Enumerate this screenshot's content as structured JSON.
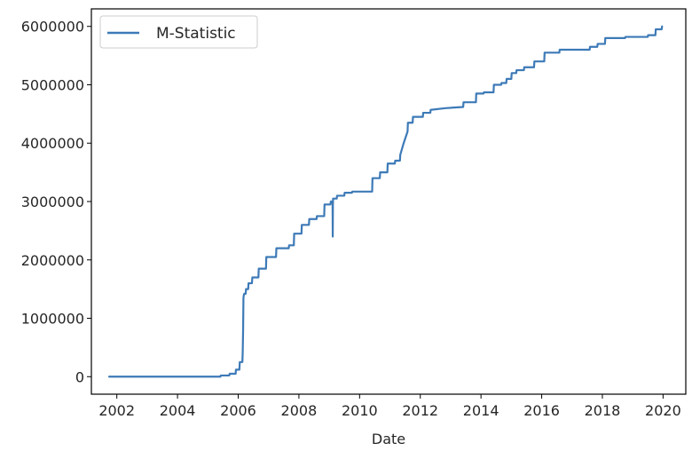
{
  "chart_data": {
    "type": "line",
    "title": "",
    "xlabel": "Date",
    "ylabel": "",
    "xlim": [
      "2001-03-01",
      "2020-10-01"
    ],
    "ylim": [
      -300000,
      6300000
    ],
    "x_ticks": [
      "2002",
      "2004",
      "2006",
      "2008",
      "2010",
      "2012",
      "2014",
      "2016",
      "2018",
      "2020"
    ],
    "y_ticks": [
      0,
      1000000,
      2000000,
      3000000,
      4000000,
      5000000,
      6000000
    ],
    "y_tick_labels": [
      "0",
      "1000000",
      "2000000",
      "3000000",
      "4000000",
      "5000000",
      "6000000"
    ],
    "grid": false,
    "legend_position": "upper-left",
    "series": [
      {
        "name": "M-Statistic",
        "color": "#3d7ab7",
        "x": [
          "2001-10-01",
          "2004-01-01",
          "2005-06-01",
          "2005-06-05",
          "2005-09-15",
          "2005-09-20",
          "2005-12-01",
          "2005-12-05",
          "2006-01-15",
          "2006-01-20",
          "2006-02-20",
          "2006-02-24",
          "2006-03-01",
          "2006-03-05",
          "2006-03-10",
          "2006-03-15",
          "2006-04-01",
          "2006-04-05",
          "2006-05-01",
          "2006-05-05",
          "2006-06-15",
          "2006-06-20",
          "2006-09-01",
          "2006-09-05",
          "2006-12-01",
          "2006-12-05",
          "2007-04-01",
          "2007-04-05",
          "2007-09-01",
          "2007-09-05",
          "2007-11-01",
          "2007-11-05",
          "2008-02-01",
          "2008-02-05",
          "2008-05-01",
          "2008-05-05",
          "2008-08-01",
          "2008-08-05",
          "2008-11-01",
          "2008-11-05",
          "2009-01-15",
          "2009-01-20",
          "2009-02-10",
          "2009-02-12",
          "2009-02-14",
          "2009-02-16",
          "2009-04-01",
          "2009-04-05",
          "2009-07-01",
          "2009-07-05",
          "2009-10-01",
          "2009-10-05",
          "2010-06-01",
          "2010-06-05",
          "2010-09-01",
          "2010-09-05",
          "2010-12-01",
          "2010-12-05",
          "2011-03-01",
          "2011-03-05",
          "2011-05-01",
          "2011-05-05",
          "2011-06-15",
          "2011-08-01",
          "2011-08-05",
          "2011-10-01",
          "2011-10-05",
          "2012-02-01",
          "2012-02-05",
          "2012-05-01",
          "2012-05-05",
          "2012-11-01",
          "2013-06-01",
          "2013-06-05",
          "2013-11-01",
          "2013-11-05",
          "2014-02-01",
          "2014-02-05",
          "2014-06-01",
          "2014-06-05",
          "2014-09-01",
          "2014-09-05",
          "2014-11-01",
          "2014-11-05",
          "2015-01-01",
          "2015-01-05",
          "2015-03-01",
          "2015-03-05",
          "2015-06-01",
          "2015-06-05",
          "2015-10-01",
          "2015-10-05",
          "2016-02-01",
          "2016-02-05",
          "2016-08-01",
          "2016-08-05",
          "2017-08-01",
          "2017-08-05",
          "2017-11-01",
          "2017-11-05",
          "2018-02-01",
          "2018-02-05",
          "2018-10-01",
          "2018-10-05",
          "2019-07-01",
          "2019-07-05",
          "2019-10-01",
          "2019-10-05",
          "2019-12-15",
          "2019-12-20"
        ],
        "y": [
          0,
          0,
          0,
          20000,
          20000,
          50000,
          50000,
          120000,
          120000,
          250000,
          250000,
          400000,
          800000,
          1350000,
          1400000,
          1420000,
          1420000,
          1500000,
          1500000,
          1600000,
          1600000,
          1700000,
          1700000,
          1850000,
          1850000,
          2050000,
          2050000,
          2200000,
          2200000,
          2250000,
          2250000,
          2450000,
          2450000,
          2600000,
          2600000,
          2700000,
          2700000,
          2750000,
          2750000,
          2950000,
          2950000,
          3000000,
          3000000,
          2400000,
          2950000,
          3050000,
          3050000,
          3100000,
          3100000,
          3150000,
          3150000,
          3170000,
          3170000,
          3400000,
          3400000,
          3500000,
          3500000,
          3650000,
          3650000,
          3700000,
          3700000,
          3800000,
          4000000,
          4200000,
          4350000,
          4350000,
          4450000,
          4450000,
          4520000,
          4520000,
          4570000,
          4600000,
          4620000,
          4700000,
          4700000,
          4850000,
          4850000,
          4870000,
          4870000,
          5000000,
          5000000,
          5030000,
          5030000,
          5100000,
          5100000,
          5200000,
          5200000,
          5250000,
          5250000,
          5300000,
          5300000,
          5400000,
          5400000,
          5550000,
          5550000,
          5600000,
          5600000,
          5650000,
          5650000,
          5700000,
          5700000,
          5800000,
          5800000,
          5820000,
          5820000,
          5850000,
          5850000,
          5950000,
          5950000,
          6000000
        ]
      }
    ]
  }
}
